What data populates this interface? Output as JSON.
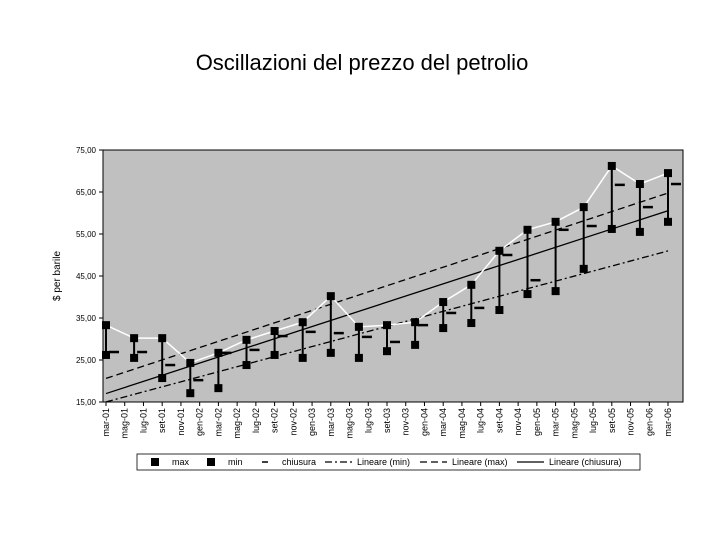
{
  "chart_data": {
    "type": "hlc",
    "title": "Oscillazioni del prezzo del petrolio",
    "ylabel": "$ per barile",
    "xlim": [
      0,
      60
    ],
    "xticks": [
      {
        "value": 0,
        "label": "mar-01"
      },
      {
        "value": 2,
        "label": "mag-01"
      },
      {
        "value": 4,
        "label": "lug-01"
      },
      {
        "value": 6,
        "label": "set-01"
      },
      {
        "value": 8,
        "label": "nov-01"
      },
      {
        "value": 10,
        "label": "gen-02"
      },
      {
        "value": 12,
        "label": "mar-02"
      },
      {
        "value": 14,
        "label": "mag-02"
      },
      {
        "value": 16,
        "label": "lug-02"
      },
      {
        "value": 18,
        "label": "set-02"
      },
      {
        "value": 20,
        "label": "nov-02"
      },
      {
        "value": 22,
        "label": "gen-03"
      },
      {
        "value": 24,
        "label": "mar-03"
      },
      {
        "value": 26,
        "label": "mag-03"
      },
      {
        "value": 28,
        "label": "lug-03"
      },
      {
        "value": 30,
        "label": "set-03"
      },
      {
        "value": 32,
        "label": "nov-03"
      },
      {
        "value": 34,
        "label": "gen-04"
      },
      {
        "value": 36,
        "label": "mar-04"
      },
      {
        "value": 38,
        "label": "mag-04"
      },
      {
        "value": 40,
        "label": "lug-04"
      },
      {
        "value": 42,
        "label": "set-04"
      },
      {
        "value": 44,
        "label": "nov-04"
      },
      {
        "value": 46,
        "label": "gen-05"
      },
      {
        "value": 48,
        "label": "mar-05"
      },
      {
        "value": 50,
        "label": "mag-05"
      },
      {
        "value": 52,
        "label": "lug-05"
      },
      {
        "value": 54,
        "label": "set-05"
      },
      {
        "value": 56,
        "label": "nov-05"
      },
      {
        "value": 58,
        "label": "gen-06"
      },
      {
        "value": 60,
        "label": "mar-06"
      }
    ],
    "x": [
      0,
      3,
      6,
      9,
      12,
      15,
      18,
      21,
      24,
      27,
      30,
      33,
      36,
      39,
      42,
      45,
      48,
      51,
      54,
      57,
      60
    ],
    "ylim": [
      15,
      75
    ],
    "yticks": [
      {
        "value": 15,
        "label": "15,00"
      },
      {
        "value": 25,
        "label": "25,00"
      },
      {
        "value": 35,
        "label": "35,00"
      },
      {
        "value": 45,
        "label": "45,00"
      },
      {
        "value": 55,
        "label": "55,00"
      },
      {
        "value": 65,
        "label": "65,00"
      },
      {
        "value": 75,
        "label": "75,00"
      }
    ],
    "plot_color": "#c0c0c0",
    "series": [
      {
        "name": "max",
        "role": "high",
        "color": "#000000",
        "trendline": "Lineare (max)",
        "trend_dash": "7,4",
        "values": [
          33.3,
          30.2,
          30.2,
          24.3,
          26.7,
          29.8,
          31.9,
          34.0,
          40.2,
          32.9,
          33.3,
          34.0,
          38.8,
          42.9,
          51.0,
          56.0,
          57.9,
          61.4,
          71.2,
          66.9,
          69.5
        ]
      },
      {
        "name": "min",
        "role": "low",
        "color": "#000000",
        "trendline": "Lineare (min)",
        "trend_dash": "7,3,2,3",
        "values": [
          26.2,
          25.5,
          20.7,
          17.1,
          18.3,
          23.8,
          26.2,
          25.5,
          26.7,
          25.5,
          27.1,
          28.6,
          32.6,
          33.8,
          36.9,
          40.7,
          41.4,
          46.7,
          56.2,
          55.5,
          57.9
        ]
      },
      {
        "name": "chiusura",
        "role": "close",
        "color": "#000000",
        "trendline": "Lineare (chiusura)",
        "trend_dash": "none",
        "values": [
          26.9,
          26.9,
          23.8,
          20.2,
          26.7,
          27.4,
          30.7,
          31.7,
          31.4,
          30.5,
          29.3,
          33.3,
          36.2,
          37.4,
          50.0,
          44.0,
          56.0,
          56.9,
          66.7,
          61.4,
          66.9
        ]
      }
    ]
  }
}
